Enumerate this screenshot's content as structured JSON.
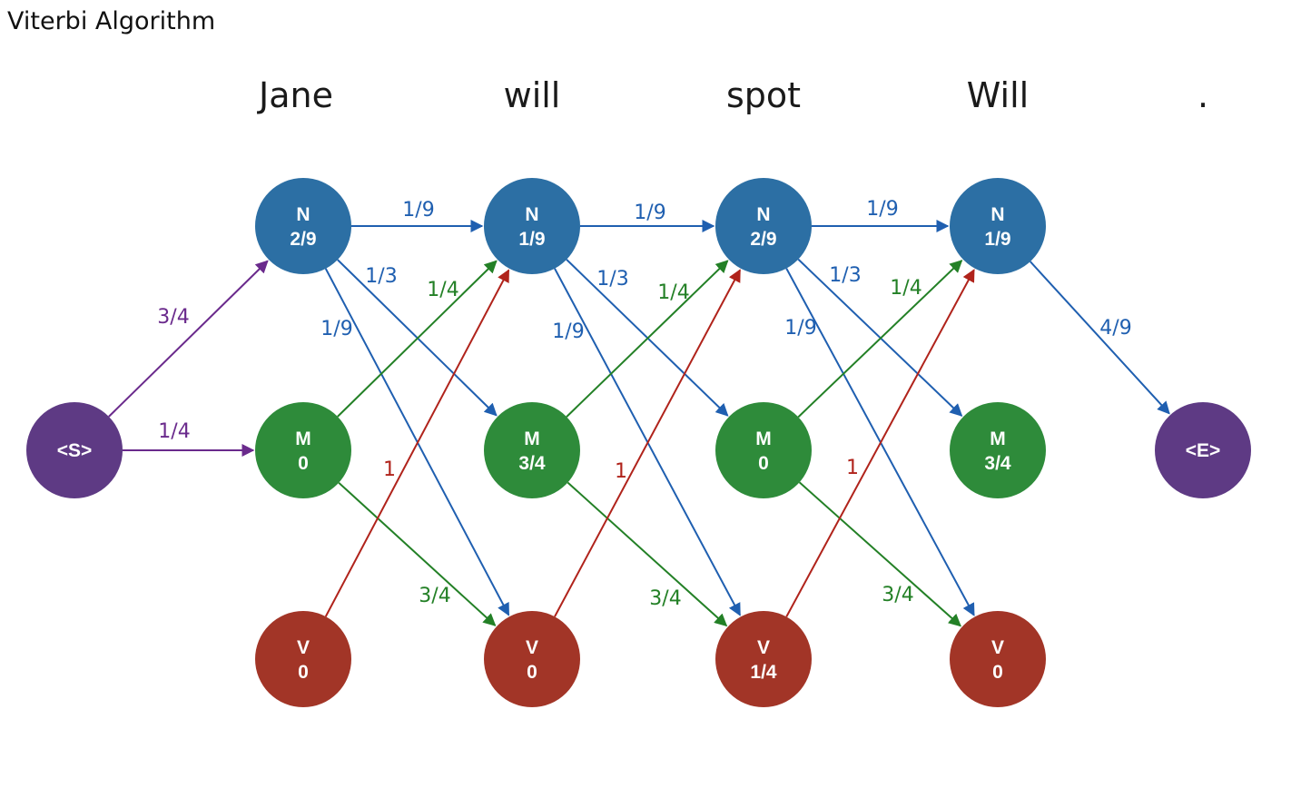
{
  "title": "Viterbi Algorithm",
  "words": [
    "Jane",
    "will",
    "spot",
    "Will",
    "."
  ],
  "colors": {
    "N": "#2c6fa4",
    "M": "#2e8b3a",
    "V": "#a23527",
    "S": "#5e3a84",
    "E": "#5e3a84",
    "edge_N": "#1f5fb0",
    "edge_M": "#238026",
    "edge_V": "#b0231b",
    "edge_S": "#6a2a8c"
  },
  "nodes": [
    {
      "id": "S",
      "label": "<S>",
      "value": "",
      "type": "S"
    },
    {
      "id": "N1",
      "label": "N",
      "value": "2/9",
      "type": "N"
    },
    {
      "id": "M1",
      "label": "M",
      "value": "0",
      "type": "M"
    },
    {
      "id": "V1",
      "label": "V",
      "value": "0",
      "type": "V"
    },
    {
      "id": "N2",
      "label": "N",
      "value": "1/9",
      "type": "N"
    },
    {
      "id": "M2",
      "label": "M",
      "value": "3/4",
      "type": "M"
    },
    {
      "id": "V2",
      "label": "V",
      "value": "0",
      "type": "V"
    },
    {
      "id": "N3",
      "label": "N",
      "value": "2/9",
      "type": "N"
    },
    {
      "id": "M3",
      "label": "M",
      "value": "0",
      "type": "M"
    },
    {
      "id": "V3",
      "label": "V",
      "value": "1/4",
      "type": "V"
    },
    {
      "id": "N4",
      "label": "N",
      "value": "1/9",
      "type": "N"
    },
    {
      "id": "M4",
      "label": "M",
      "value": "3/4",
      "type": "M"
    },
    {
      "id": "V4",
      "label": "V",
      "value": "0",
      "type": "V"
    },
    {
      "id": "E",
      "label": "<E>",
      "value": "",
      "type": "E"
    }
  ],
  "edges": [
    {
      "from": "S",
      "to": "N1",
      "label": "3/4",
      "color": "S"
    },
    {
      "from": "S",
      "to": "M1",
      "label": "1/4",
      "color": "S"
    },
    {
      "from": "N1",
      "to": "N2",
      "label": "1/9",
      "color": "N"
    },
    {
      "from": "N1",
      "to": "M2",
      "label": "1/3",
      "color": "N"
    },
    {
      "from": "N1",
      "to": "V2",
      "label": "1/9",
      "color": "N"
    },
    {
      "from": "M1",
      "to": "N2",
      "label": "1/4",
      "color": "M"
    },
    {
      "from": "M1",
      "to": "V2",
      "label": "3/4",
      "color": "M"
    },
    {
      "from": "V1",
      "to": "N2",
      "label": "1",
      "color": "V"
    },
    {
      "from": "N2",
      "to": "N3",
      "label": "1/9",
      "color": "N"
    },
    {
      "from": "N2",
      "to": "M3",
      "label": "1/3",
      "color": "N"
    },
    {
      "from": "N2",
      "to": "V3",
      "label": "1/9",
      "color": "N"
    },
    {
      "from": "M2",
      "to": "N3",
      "label": "1/4",
      "color": "M"
    },
    {
      "from": "M2",
      "to": "V3",
      "label": "3/4",
      "color": "M"
    },
    {
      "from": "V2",
      "to": "N3",
      "label": "1",
      "color": "V"
    },
    {
      "from": "N3",
      "to": "N4",
      "label": "1/9",
      "color": "N"
    },
    {
      "from": "N3",
      "to": "M4",
      "label": "1/3",
      "color": "N"
    },
    {
      "from": "N3",
      "to": "V4",
      "label": "1/9",
      "color": "N"
    },
    {
      "from": "M3",
      "to": "N4",
      "label": "1/4",
      "color": "M"
    },
    {
      "from": "M3",
      "to": "V4",
      "label": "3/4",
      "color": "M"
    },
    {
      "from": "V3",
      "to": "N4",
      "label": "1",
      "color": "V"
    },
    {
      "from": "N4",
      "to": "E",
      "label": "4/9",
      "color": "N"
    }
  ]
}
